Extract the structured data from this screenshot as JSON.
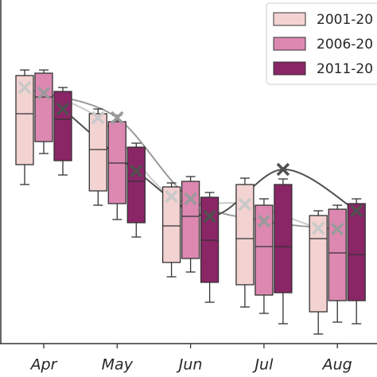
{
  "chart_data": {
    "type": "box",
    "categories": [
      "Apr",
      "May",
      "Jun",
      "Jul",
      "Aug"
    ],
    "ylim": [
      0,
      432
    ],
    "legend": "upper right",
    "series": [
      {
        "name": "2001-20",
        "color": "#f3d2d2",
        "mean_color": "#c9c9c9",
        "whislo": [
          200,
          174,
          84,
          46,
          12
        ],
        "q1": [
          225,
          192,
          102,
          74,
          40
        ],
        "med": [
          289,
          244,
          148,
          132,
          132
        ],
        "q3": [
          337,
          289,
          197,
          200,
          161
        ],
        "whishi": [
          344,
          295,
          202,
          208,
          167
        ],
        "means": [
          322,
          284,
          185,
          175,
          145
        ]
      },
      {
        "name": "2006-20",
        "color": "#dc88b1",
        "mean_color": "#9a9a9a",
        "whislo": [
          239,
          156,
          90,
          38,
          27
        ],
        "q1": [
          254,
          176,
          107,
          61,
          54
        ],
        "med": [
          310,
          227,
          160,
          122,
          114
        ],
        "q3": [
          340,
          279,
          204,
          174,
          169
        ],
        "whishi": [
          344,
          287,
          210,
          182,
          174
        ],
        "means": [
          315,
          284,
          182,
          154,
          144
        ]
      },
      {
        "name": "2011-20",
        "color": "#8a2566",
        "mean_color": "#505050",
        "whislo": [
          212,
          134,
          52,
          25,
          25
        ],
        "q1": [
          230,
          152,
          77,
          64,
          54
        ],
        "med": [
          282,
          204,
          130,
          122,
          112
        ],
        "q3": [
          317,
          247,
          184,
          200,
          176
        ],
        "whishi": [
          322,
          252,
          190,
          207,
          182
        ],
        "means": [
          295,
          217,
          160,
          219,
          167
        ]
      }
    ]
  }
}
